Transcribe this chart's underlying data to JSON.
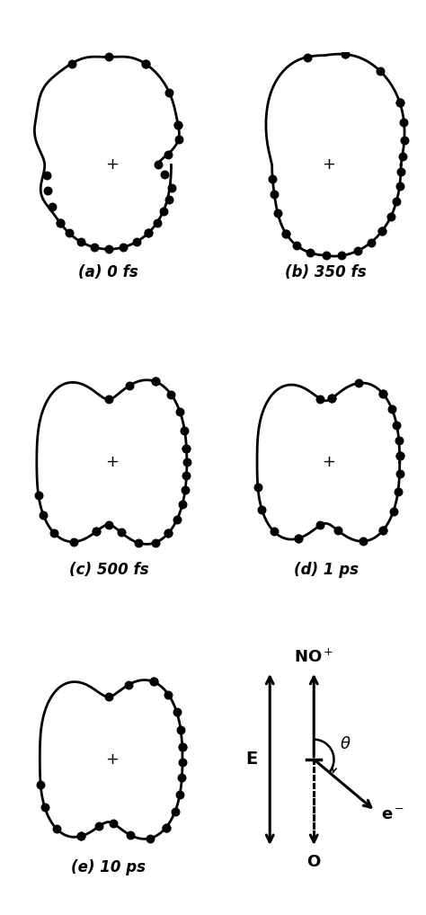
{
  "bg_color": "#ffffff",
  "labels": [
    "(a) 0 fs",
    "(b) 350 fs",
    "(c) 500 fs",
    "(d) 1 ps",
    "(e) 10 ps"
  ],
  "label_fontsize": 12,
  "dot_size": 38,
  "line_width": 2.0
}
